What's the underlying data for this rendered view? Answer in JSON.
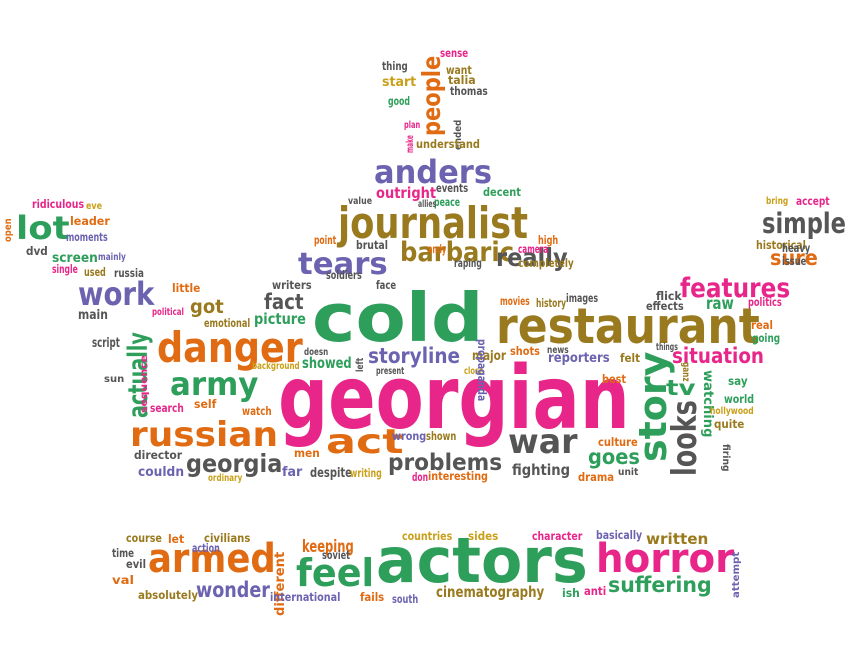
{
  "colors": {
    "pink": "#e8268a",
    "green": "#2e9e5b",
    "orange": "#e06b12",
    "purple": "#6b63b0",
    "olive": "#9a7a1e",
    "gray": "#555555",
    "gold": "#c9a01a"
  },
  "words": [
    {
      "text": "georgian",
      "color": "pink"
    },
    {
      "text": "cold",
      "color": "green"
    },
    {
      "text": "restaurant",
      "color": "olive"
    },
    {
      "text": "actors",
      "color": "green"
    },
    {
      "text": "journalist",
      "color": "olive"
    },
    {
      "text": "danger",
      "color": "orange"
    },
    {
      "text": "armed",
      "color": "orange"
    },
    {
      "text": "horror",
      "color": "pink"
    },
    {
      "text": "feel",
      "color": "green"
    },
    {
      "text": "russian",
      "color": "orange"
    },
    {
      "text": "work",
      "color": "purple"
    },
    {
      "text": "anders",
      "color": "purple"
    },
    {
      "text": "tears",
      "color": "purple"
    },
    {
      "text": "act",
      "color": "orange"
    },
    {
      "text": "war",
      "color": "gray"
    },
    {
      "text": "army",
      "color": "green"
    },
    {
      "text": "barbaric",
      "color": "olive"
    },
    {
      "text": "story",
      "color": "green"
    },
    {
      "text": "looks",
      "color": "gray"
    },
    {
      "text": "lot",
      "color": "green"
    },
    {
      "text": "features",
      "color": "pink"
    },
    {
      "text": "simple",
      "color": "gray"
    },
    {
      "text": "people",
      "color": "orange"
    },
    {
      "text": "georgia",
      "color": "gray"
    },
    {
      "text": "problems",
      "color": "gray"
    },
    {
      "text": "really",
      "color": "gray"
    },
    {
      "text": "actually",
      "color": "green"
    },
    {
      "text": "storyline",
      "color": "purple"
    },
    {
      "text": "situation",
      "color": "pink"
    },
    {
      "text": "suffering",
      "color": "green"
    },
    {
      "text": "wonder",
      "color": "purple"
    },
    {
      "text": "sure",
      "color": "orange"
    },
    {
      "text": "fact",
      "color": "gray"
    },
    {
      "text": "got",
      "color": "olive"
    },
    {
      "text": "goes",
      "color": "green"
    },
    {
      "text": "tv",
      "color": "green"
    },
    {
      "text": "keeping",
      "color": "orange"
    },
    {
      "text": "raw",
      "color": "green"
    },
    {
      "text": "picture",
      "color": "green"
    },
    {
      "text": "reporters",
      "color": "purple"
    },
    {
      "text": "fighting",
      "color": "gray"
    },
    {
      "text": "showed",
      "color": "green"
    },
    {
      "text": "cinematography",
      "color": "olive"
    },
    {
      "text": "written",
      "color": "olive"
    },
    {
      "text": "outright",
      "color": "pink"
    },
    {
      "text": "start",
      "color": "gold"
    },
    {
      "text": "major",
      "color": "olive"
    },
    {
      "text": "watching",
      "color": "green"
    },
    {
      "text": "different",
      "color": "orange"
    },
    {
      "text": "completely",
      "color": "olive"
    },
    {
      "text": "camera",
      "color": "pink"
    },
    {
      "text": "high",
      "color": "orange"
    },
    {
      "text": "decent",
      "color": "green"
    },
    {
      "text": "events",
      "color": "gray"
    },
    {
      "text": "peace",
      "color": "green"
    },
    {
      "text": "brutal",
      "color": "gray"
    },
    {
      "text": "andy",
      "color": "orange"
    },
    {
      "text": "raping",
      "color": "gray"
    },
    {
      "text": "writers",
      "color": "gray"
    },
    {
      "text": "soldiers",
      "color": "gray"
    },
    {
      "text": "face",
      "color": "gray"
    },
    {
      "text": "point",
      "color": "orange"
    },
    {
      "text": "movies",
      "color": "orange"
    },
    {
      "text": "history",
      "color": "olive"
    },
    {
      "text": "images",
      "color": "gray"
    },
    {
      "text": "flick",
      "color": "gray"
    },
    {
      "text": "effects",
      "color": "gray"
    },
    {
      "text": "politics",
      "color": "pink"
    },
    {
      "text": "historical",
      "color": "olive"
    },
    {
      "text": "heavy",
      "color": "gray"
    },
    {
      "text": "issue",
      "color": "gray"
    },
    {
      "text": "bring",
      "color": "gold"
    },
    {
      "text": "accept",
      "color": "pink"
    },
    {
      "text": "real",
      "color": "orange"
    },
    {
      "text": "going",
      "color": "green"
    },
    {
      "text": "say",
      "color": "green"
    },
    {
      "text": "world",
      "color": "green"
    },
    {
      "text": "hollywood",
      "color": "gold"
    },
    {
      "text": "quite",
      "color": "olive"
    },
    {
      "text": "firing",
      "color": "gray"
    },
    {
      "text": "unit",
      "color": "gray"
    },
    {
      "text": "drama",
      "color": "orange"
    },
    {
      "text": "culture",
      "color": "orange"
    },
    {
      "text": "best",
      "color": "orange"
    },
    {
      "text": "shots",
      "color": "orange"
    },
    {
      "text": "news",
      "color": "gray"
    },
    {
      "text": "felt",
      "color": "olive"
    },
    {
      "text": "things",
      "color": "gray"
    },
    {
      "text": "ganz",
      "color": "olive"
    },
    {
      "text": "close",
      "color": "gold"
    },
    {
      "text": "propaganda",
      "color": "purple"
    },
    {
      "text": "left",
      "color": "gray"
    },
    {
      "text": "present",
      "color": "gray"
    },
    {
      "text": "doesn",
      "color": "gray"
    },
    {
      "text": "background",
      "color": "gold"
    },
    {
      "text": "emotional",
      "color": "olive"
    },
    {
      "text": "political",
      "color": "pink"
    },
    {
      "text": "little",
      "color": "orange"
    },
    {
      "text": "main",
      "color": "gray"
    },
    {
      "text": "script",
      "color": "gray"
    },
    {
      "text": "sun",
      "color": "gray"
    },
    {
      "text": "sequence",
      "color": "pink"
    },
    {
      "text": "search",
      "color": "pink"
    },
    {
      "text": "self",
      "color": "orange"
    },
    {
      "text": "watch",
      "color": "orange"
    },
    {
      "text": "director",
      "color": "gray"
    },
    {
      "text": "couldn",
      "color": "purple"
    },
    {
      "text": "ordinary",
      "color": "gold"
    },
    {
      "text": "men",
      "color": "orange"
    },
    {
      "text": "far",
      "color": "purple"
    },
    {
      "text": "despite",
      "color": "gray"
    },
    {
      "text": "writing",
      "color": "gold"
    },
    {
      "text": "don",
      "color": "pink"
    },
    {
      "text": "interesting",
      "color": "orange"
    },
    {
      "text": "wrong",
      "color": "purple"
    },
    {
      "text": "shown",
      "color": "olive"
    },
    {
      "text": "screen",
      "color": "green"
    },
    {
      "text": "mainly",
      "color": "purple"
    },
    {
      "text": "single",
      "color": "pink"
    },
    {
      "text": "used",
      "color": "olive"
    },
    {
      "text": "russia",
      "color": "gray"
    },
    {
      "text": "dvd",
      "color": "gray"
    },
    {
      "text": "moments",
      "color": "purple"
    },
    {
      "text": "leader",
      "color": "orange"
    },
    {
      "text": "ridiculous",
      "color": "pink"
    },
    {
      "text": "eve",
      "color": "gold"
    },
    {
      "text": "open",
      "color": "orange"
    },
    {
      "text": "value",
      "color": "gray"
    },
    {
      "text": "allies",
      "color": "gray"
    },
    {
      "text": "thing",
      "color": "gray"
    },
    {
      "text": "want",
      "color": "olive"
    },
    {
      "text": "talia",
      "color": "olive"
    },
    {
      "text": "thomas",
      "color": "gray"
    },
    {
      "text": "good",
      "color": "green"
    },
    {
      "text": "sense",
      "color": "pink"
    },
    {
      "text": "plan",
      "color": "pink"
    },
    {
      "text": "make",
      "color": "pink"
    },
    {
      "text": "ended",
      "color": "gray"
    },
    {
      "text": "understand",
      "color": "olive"
    },
    {
      "text": "course",
      "color": "olive"
    },
    {
      "text": "let",
      "color": "orange"
    },
    {
      "text": "civilians",
      "color": "olive"
    },
    {
      "text": "action",
      "color": "purple"
    },
    {
      "text": "time",
      "color": "gray"
    },
    {
      "text": "evil",
      "color": "gray"
    },
    {
      "text": "val",
      "color": "orange"
    },
    {
      "text": "absolutely",
      "color": "olive"
    },
    {
      "text": "soviet",
      "color": "gray"
    },
    {
      "text": "international",
      "color": "purple"
    },
    {
      "text": "countries",
      "color": "gold"
    },
    {
      "text": "sides",
      "color": "gold"
    },
    {
      "text": "fails",
      "color": "orange"
    },
    {
      "text": "south",
      "color": "purple"
    },
    {
      "text": "ish",
      "color": "green"
    },
    {
      "text": "anti",
      "color": "pink"
    },
    {
      "text": "character",
      "color": "pink"
    },
    {
      "text": "basically",
      "color": "purple"
    },
    {
      "text": "attempt",
      "color": "purple"
    }
  ]
}
